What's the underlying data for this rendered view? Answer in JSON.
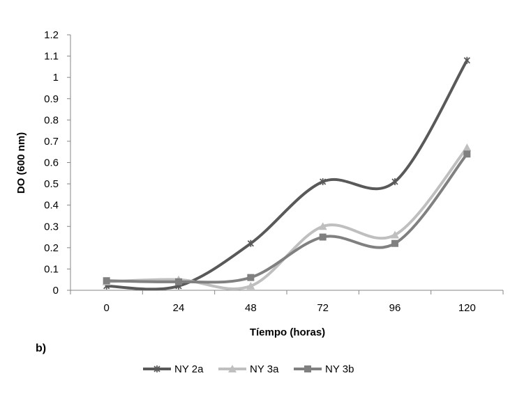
{
  "panel_label": "b)",
  "chart_data": {
    "type": "line",
    "title": "",
    "xlabel": "Tíempo (horas)",
    "ylabel": "DO (600 nm)",
    "x": [
      0,
      24,
      48,
      72,
      96,
      120
    ],
    "x_tick_labels": [
      "0",
      "24",
      "48",
      "72",
      "96",
      "120"
    ],
    "ylim": [
      0,
      1.2
    ],
    "y_ticks": [
      0,
      0.1,
      0.2,
      0.3,
      0.4,
      0.5,
      0.6,
      0.7,
      0.8,
      0.9,
      1,
      1.1,
      1.2
    ],
    "y_tick_labels": [
      "0",
      "0.1",
      "0.2",
      "0.3",
      "0.4",
      "0.5",
      "0.6",
      "0.7",
      "0.8",
      "0.9",
      "1",
      "1.1",
      "1.2"
    ],
    "grid": false,
    "smooth": true,
    "legend_position": "bottom",
    "series": [
      {
        "name": "NY 2a",
        "values": [
          0.02,
          0.02,
          0.22,
          0.51,
          0.51,
          1.08
        ],
        "color": "#595959",
        "marker": "star"
      },
      {
        "name": "NY 3a",
        "values": [
          0.04,
          0.05,
          0.02,
          0.3,
          0.26,
          0.67
        ],
        "color": "#bfbfbf",
        "marker": "triangle"
      },
      {
        "name": "NY 3b",
        "values": [
          0.045,
          0.04,
          0.06,
          0.25,
          0.22,
          0.64
        ],
        "color": "#808080",
        "marker": "square"
      }
    ]
  }
}
